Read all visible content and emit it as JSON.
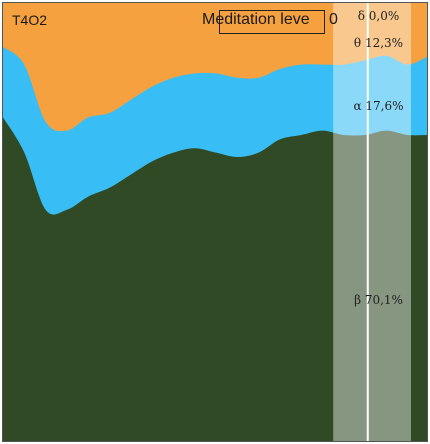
{
  "header": {
    "channel": "T4O2",
    "metric_label": "Meditation leve",
    "metric_value": "0"
  },
  "bands": [
    {
      "symbol": "δ",
      "label": "δ 0,0%"
    },
    {
      "symbol": "θ",
      "label": "θ 12,3%"
    },
    {
      "symbol": "α",
      "label": "α 17,6%"
    },
    {
      "symbol": "β",
      "label": "β 70,1%"
    }
  ],
  "colors": {
    "beta": "#2f4a25",
    "alpha": "#38bdf4",
    "theta": "#f5a13f",
    "delta": "#f5a13f",
    "highlight": "#ffffff",
    "border": "#555555"
  },
  "chart_data": {
    "type": "area",
    "stacked": true,
    "normalized": true,
    "x": [
      0,
      1,
      2,
      3,
      4,
      5,
      6,
      7,
      8,
      9,
      10,
      11,
      12,
      13,
      14,
      15,
      16,
      17,
      18,
      19,
      20
    ],
    "series": [
      {
        "name": "β",
        "values": [
          0.74,
          0.66,
          0.53,
          0.53,
          0.56,
          0.58,
          0.61,
          0.64,
          0.66,
          0.67,
          0.66,
          0.65,
          0.66,
          0.69,
          0.7,
          0.71,
          0.7,
          0.7,
          0.71,
          0.7,
          0.7
        ]
      },
      {
        "name": "α",
        "values": [
          0.16,
          0.2,
          0.2,
          0.18,
          0.18,
          0.17,
          0.17,
          0.17,
          0.17,
          0.17,
          0.18,
          0.18,
          0.17,
          0.16,
          0.16,
          0.15,
          0.16,
          0.17,
          0.17,
          0.16,
          0.18
        ]
      },
      {
        "name": "θ",
        "values": [
          0.1,
          0.14,
          0.27,
          0.29,
          0.26,
          0.25,
          0.22,
          0.19,
          0.17,
          0.16,
          0.16,
          0.17,
          0.17,
          0.15,
          0.14,
          0.14,
          0.14,
          0.13,
          0.12,
          0.14,
          0.12
        ]
      },
      {
        "name": "δ",
        "values": [
          0,
          0,
          0,
          0,
          0,
          0,
          0,
          0,
          0,
          0,
          0,
          0,
          0,
          0,
          0,
          0,
          0,
          0,
          0,
          0,
          0
        ]
      }
    ],
    "highlight_range": [
      15.5,
      20
    ],
    "highlight_marker": 17.5,
    "title": "",
    "xlabel": "",
    "ylabel": "",
    "ylim": [
      0,
      1
    ],
    "grid": false,
    "legend": "none"
  }
}
